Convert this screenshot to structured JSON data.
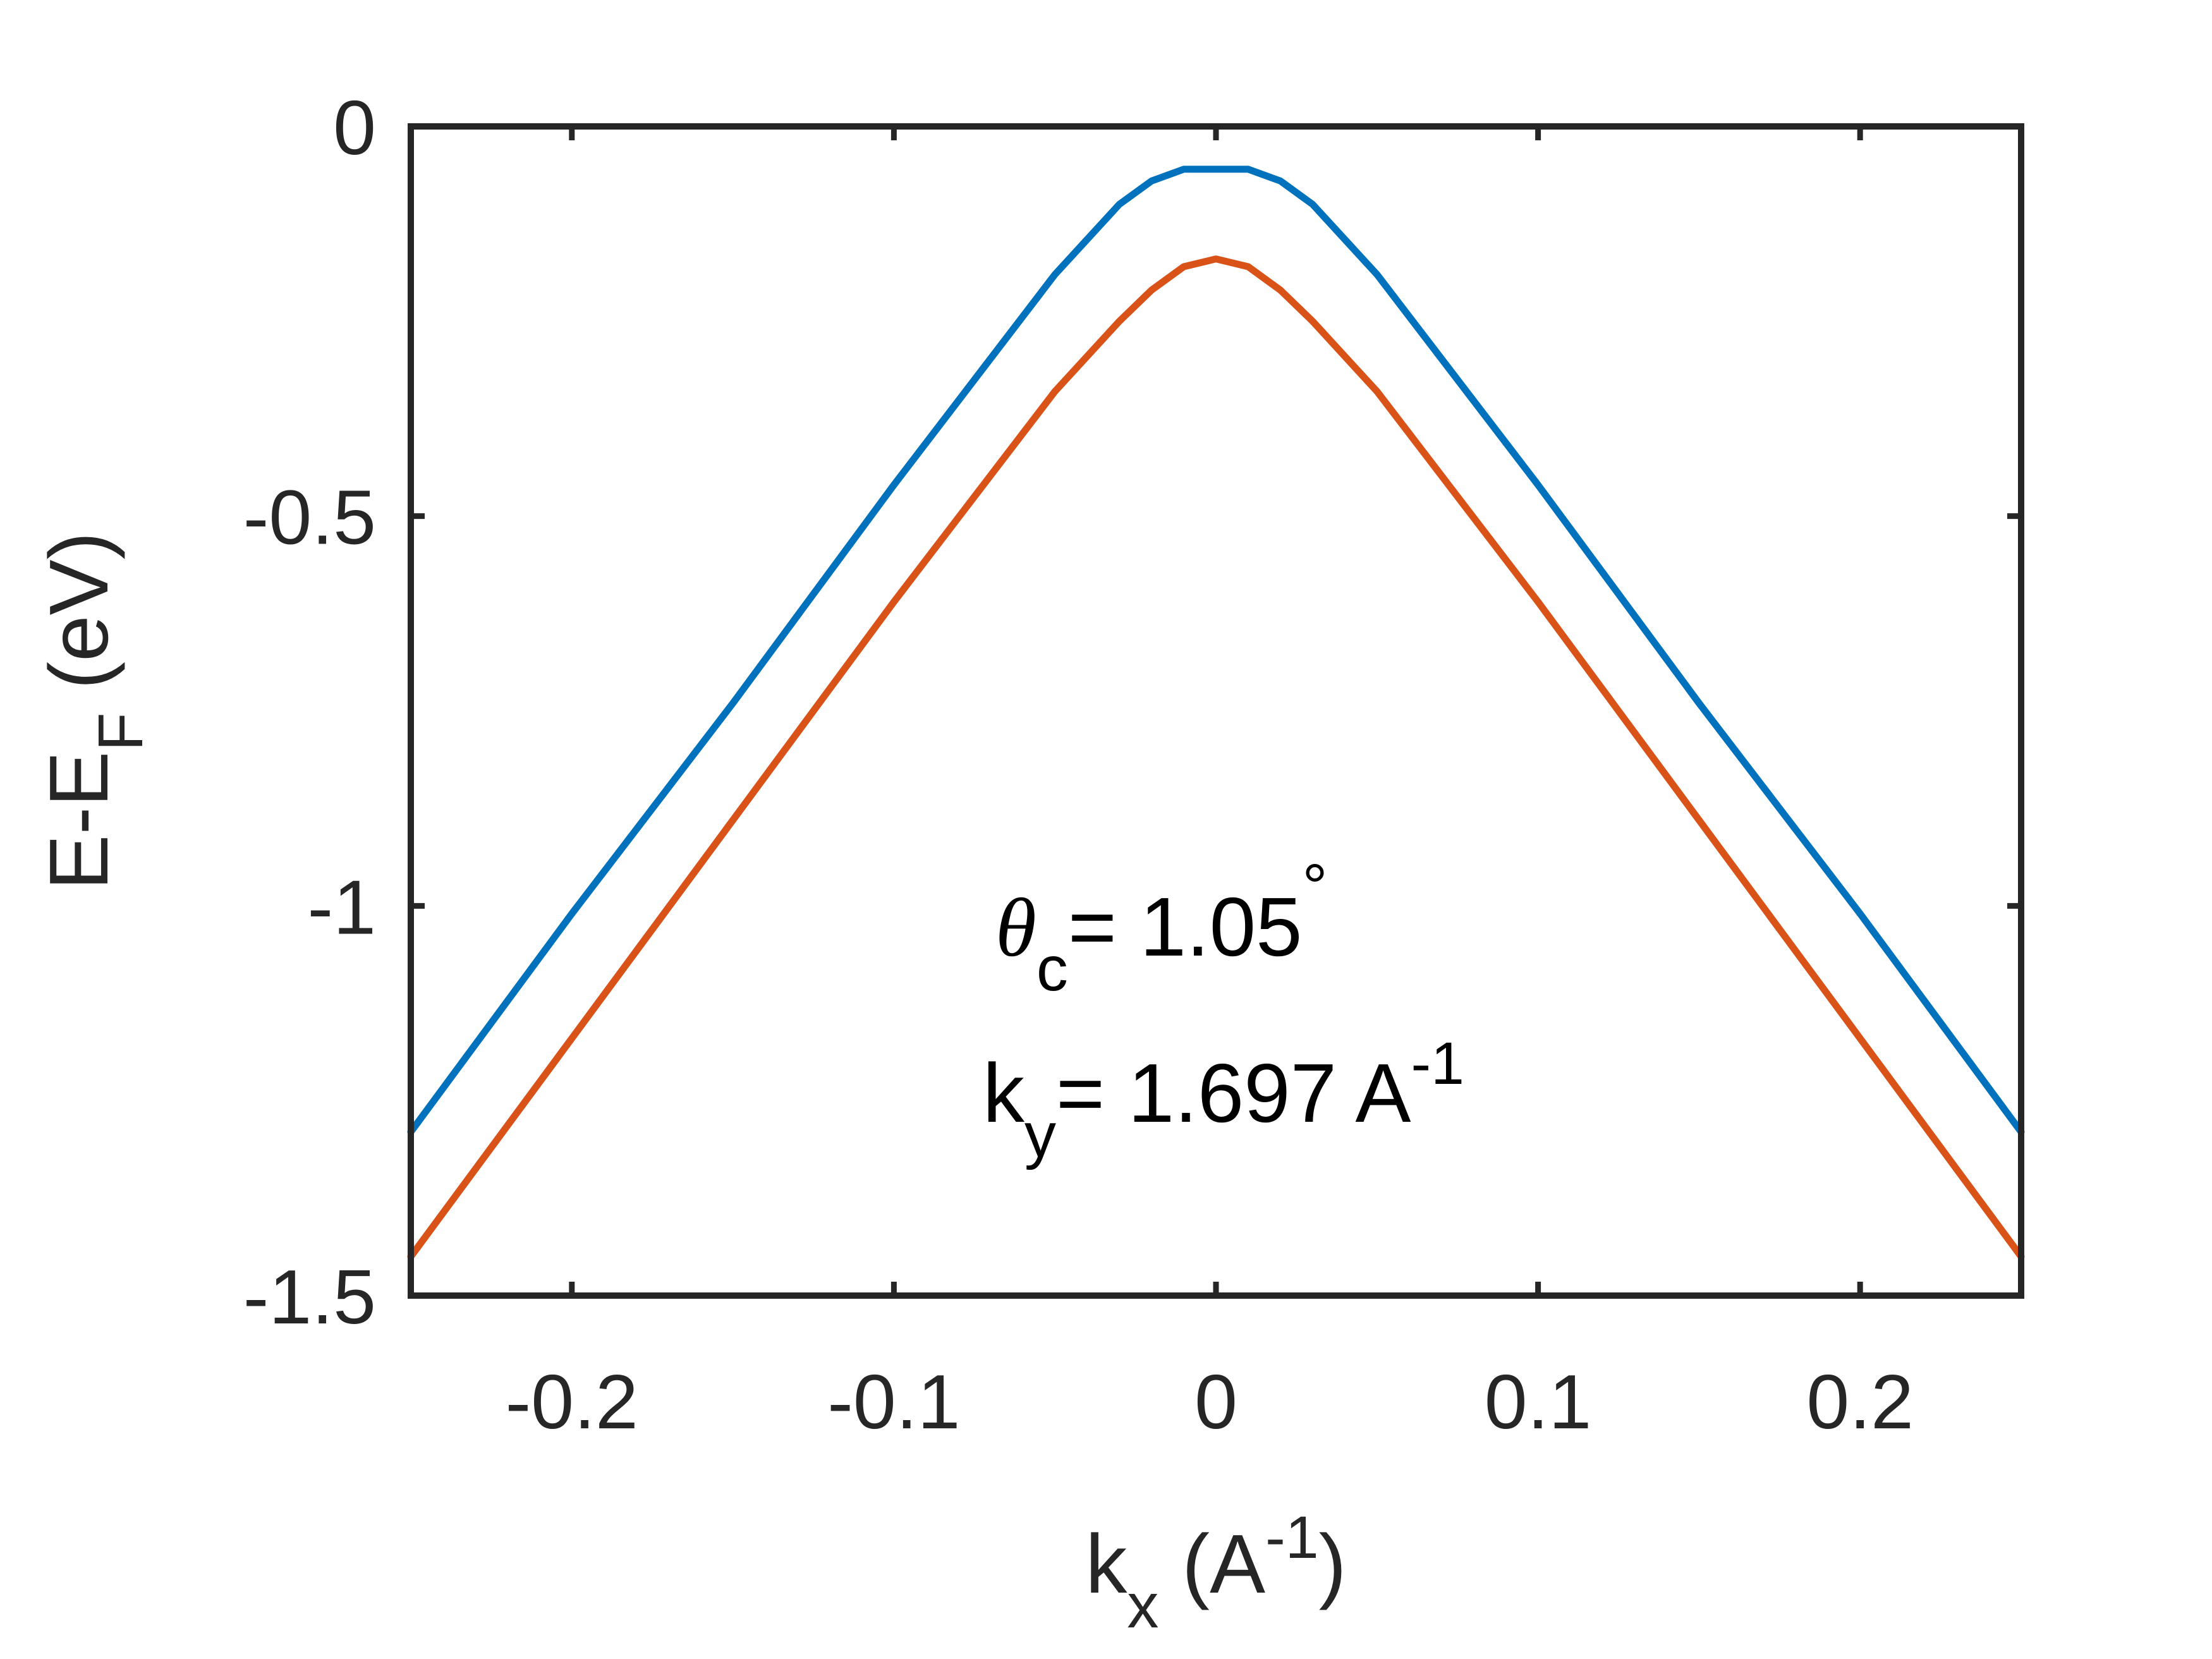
{
  "chart_data": {
    "type": "line",
    "xlabel": {
      "main": "k",
      "sub": "x",
      "unit_prefix": " (A",
      "unit_sup": "-1",
      "unit_suffix": ")"
    },
    "ylabel": {
      "main": "E-E",
      "sub": "F",
      "unit": " (eV)"
    },
    "xlim": [
      -0.25,
      0.25
    ],
    "ylim": [
      -1.5,
      0
    ],
    "xticks": [
      -0.2,
      -0.1,
      0,
      0.1,
      0.2
    ],
    "xtick_labels": [
      "-0.2",
      "-0.1",
      "0",
      "0.1",
      "0.2"
    ],
    "yticks": [
      0,
      -0.5,
      -1,
      -1.5
    ],
    "ytick_labels": [
      "0",
      "-0.5",
      "-1",
      "-1.5"
    ],
    "grid": false,
    "legend": "none",
    "annotations": {
      "theta_symbol": "θ",
      "theta_sub": "c",
      "theta_value": "= 1.05",
      "degree": "°",
      "ky_main": "k",
      "ky_sub": "y",
      "ky_value": "= 1.697 A",
      "ky_sup": "-1"
    },
    "series": [
      {
        "color": "#0072BD",
        "x": [
          -0.25,
          -0.2,
          -0.15,
          -0.1,
          -0.05,
          -0.03,
          -0.02,
          -0.01,
          0,
          0.01,
          0.02,
          0.03,
          0.05,
          0.1,
          0.15,
          0.2,
          0.25
        ],
        "y": [
          -1.29,
          -1.01,
          -0.74,
          -0.46,
          -0.19,
          -0.1,
          -0.07,
          -0.055,
          -0.055,
          -0.055,
          -0.07,
          -0.1,
          -0.19,
          -0.46,
          -0.74,
          -1.01,
          -1.29
        ]
      },
      {
        "color": "#D95319",
        "x": [
          -0.25,
          -0.2,
          -0.15,
          -0.1,
          -0.05,
          -0.03,
          -0.02,
          -0.01,
          0,
          0.01,
          0.02,
          0.03,
          0.05,
          0.1,
          0.15,
          0.2,
          0.25
        ],
        "y": [
          -1.45,
          -1.17,
          -0.89,
          -0.61,
          -0.34,
          -0.25,
          -0.21,
          -0.18,
          -0.17,
          -0.18,
          -0.21,
          -0.25,
          -0.34,
          -0.61,
          -0.89,
          -1.17,
          -1.45
        ]
      }
    ]
  }
}
